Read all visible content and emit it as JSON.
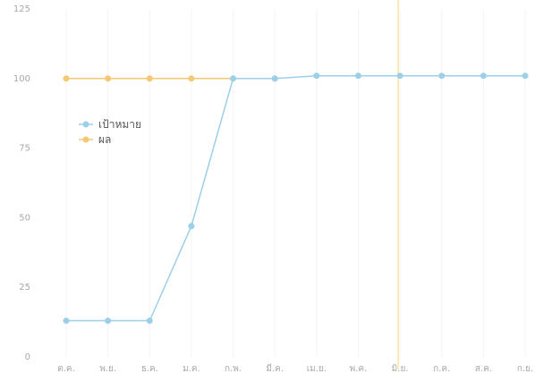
{
  "chart_data": {
    "type": "line",
    "categories": [
      "ต.ค.",
      "พ.ย.",
      "ธ.ค.",
      "ม.ค.",
      "ก.พ.",
      "มี.ค.",
      "เม.ย.",
      "พ.ค.",
      "มิ.ย.",
      "ก.ค.",
      "ส.ค.",
      "ก.ย."
    ],
    "series": [
      {
        "name": "เป้าหมาย",
        "color": "#9dcfe8",
        "values": [
          13,
          13,
          13,
          47,
          100,
          100,
          101,
          101,
          101,
          101,
          101,
          101
        ]
      },
      {
        "name": "ผล",
        "color": "#f7c872",
        "values": [
          100,
          100,
          100,
          100,
          100,
          100,
          null,
          null,
          null,
          null,
          null,
          null
        ]
      }
    ],
    "yticks": [
      0,
      25,
      50,
      75,
      100,
      125
    ],
    "ylim": [
      0,
      125
    ],
    "title": "",
    "xlabel": "",
    "ylabel": "",
    "grid": true,
    "legend": "left",
    "highlight_category": "มิ.ย.",
    "highlight_color": "#fbe3a4"
  }
}
